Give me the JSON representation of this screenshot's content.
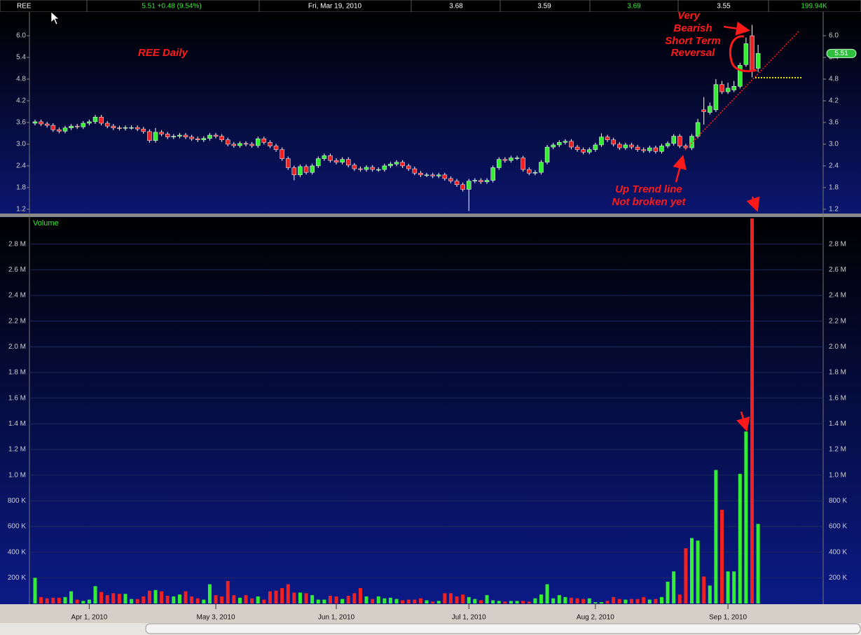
{
  "header": {
    "cells": [
      "REE",
      "5.51 +0.48 (9.54%)",
      "Fri, Mar 19, 2010",
      "3.68",
      "3.59",
      "3.69",
      "3.55",
      "199.94K"
    ]
  },
  "annotations": [
    "Very",
    "Bearish",
    "Short Term",
    "Reversal",
    "Up Trend line",
    "Not broken yet"
  ],
  "chart_data": [
    {
      "type": "candlestick",
      "title": "REE Daily",
      "up_color": "#33ee33",
      "down_color": "#ee2222",
      "wick_color": "#ffffff",
      "xlim": [
        -0.93,
        130.8
      ],
      "ylim": [
        1.12,
        6.64
      ],
      "yticks": [
        1.2,
        1.8,
        2.4,
        {
          "value": 3.0,
          "label": "3.0"
        },
        3.6,
        4.2,
        4.8,
        5.4,
        {
          "value": 6.0,
          "label": "6.0"
        }
      ],
      "open": [
        3.58,
        3.62,
        3.56,
        3.52,
        3.4,
        3.36,
        3.45,
        3.5,
        3.48,
        3.58,
        3.62,
        3.75,
        3.58,
        3.5,
        3.45,
        3.44,
        3.46,
        3.46,
        3.42,
        3.35,
        3.1,
        3.33,
        3.28,
        3.2,
        3.22,
        3.25,
        3.2,
        3.15,
        3.12,
        3.16,
        3.25,
        3.22,
        3.12,
        3.0,
        2.96,
        3.02,
        3.0,
        2.96,
        3.15,
        3.05,
        2.95,
        2.85,
        2.6,
        2.35,
        2.15,
        2.38,
        2.22,
        2.4,
        2.6,
        2.68,
        2.55,
        2.5,
        2.58,
        2.42,
        2.32,
        2.3,
        2.36,
        2.3,
        2.3,
        2.4,
        2.45,
        2.5,
        2.4,
        2.32,
        2.2,
        2.15,
        2.15,
        2.12,
        2.15,
        2.05,
        1.98,
        1.88,
        1.75,
        1.98,
        2.0,
        1.96,
        2.0,
        2.35,
        2.58,
        2.55,
        2.62,
        2.62,
        2.3,
        2.2,
        2.22,
        2.5,
        2.92,
        2.98,
        3.05,
        3.08,
        2.92,
        2.85,
        2.78,
        2.85,
        2.98,
        3.2,
        3.12,
        3.0,
        2.9,
        2.98,
        2.92,
        2.85,
        2.82,
        2.9,
        2.8,
        2.95,
        3.02,
        3.22,
        2.95,
        2.9,
        3.22,
        3.95,
        3.88,
        3.95,
        4.65,
        4.45,
        4.5,
        4.6,
        5.2,
        6.0,
        5.1
      ],
      "high": [
        3.68,
        3.68,
        3.62,
        3.58,
        3.46,
        3.51,
        3.56,
        3.56,
        3.64,
        3.68,
        3.81,
        3.81,
        3.64,
        3.56,
        3.51,
        3.52,
        3.52,
        3.52,
        3.48,
        3.41,
        3.45,
        3.39,
        3.34,
        3.28,
        3.31,
        3.31,
        3.26,
        3.21,
        3.22,
        3.31,
        3.31,
        3.28,
        3.18,
        3.06,
        3.08,
        3.08,
        3.06,
        3.21,
        3.21,
        3.11,
        3.01,
        2.91,
        2.66,
        2.41,
        2.44,
        2.44,
        2.46,
        2.66,
        2.74,
        2.74,
        2.61,
        2.64,
        2.64,
        2.48,
        2.38,
        2.42,
        2.42,
        2.36,
        2.46,
        2.51,
        2.56,
        2.56,
        2.46,
        2.38,
        2.26,
        2.21,
        2.21,
        2.21,
        2.21,
        2.11,
        2.04,
        1.94,
        2.04,
        2.06,
        2.06,
        2.06,
        2.41,
        2.64,
        2.64,
        2.68,
        2.68,
        2.68,
        2.36,
        2.28,
        2.56,
        2.98,
        3.04,
        3.11,
        3.14,
        3.14,
        2.98,
        2.91,
        2.91,
        3.04,
        3.3,
        3.26,
        3.18,
        3.06,
        3.04,
        3.04,
        2.98,
        2.91,
        2.96,
        2.96,
        3.01,
        3.08,
        3.28,
        3.28,
        3.01,
        3.28,
        3.7,
        4.3,
        4.15,
        4.8,
        4.75,
        4.7,
        4.75,
        5.25,
        5.95,
        6.3,
        5.75
      ],
      "low": [
        3.52,
        3.5,
        3.46,
        3.34,
        3.3,
        3.3,
        3.39,
        3.42,
        3.42,
        3.52,
        3.56,
        3.52,
        3.44,
        3.39,
        3.38,
        3.38,
        3.4,
        3.36,
        3.29,
        3.04,
        3.04,
        3.22,
        3.14,
        3.14,
        3.16,
        3.14,
        3.09,
        3.06,
        3.06,
        3.1,
        3.16,
        3.06,
        2.94,
        2.9,
        2.9,
        2.94,
        2.9,
        2.9,
        2.99,
        2.89,
        2.79,
        2.54,
        2.29,
        2.0,
        2.09,
        2.16,
        2.16,
        2.34,
        2.54,
        2.49,
        2.44,
        2.44,
        2.36,
        2.26,
        2.24,
        2.24,
        2.24,
        2.24,
        2.24,
        2.34,
        2.39,
        2.34,
        2.26,
        2.14,
        2.09,
        2.09,
        2.06,
        2.06,
        1.99,
        1.92,
        1.82,
        1.69,
        1.15,
        1.92,
        1.9,
        1.9,
        1.94,
        2.29,
        2.49,
        2.49,
        2.56,
        2.24,
        2.14,
        2.14,
        2.16,
        2.44,
        2.86,
        2.92,
        2.99,
        2.86,
        2.79,
        2.72,
        2.72,
        2.79,
        2.92,
        3.06,
        2.94,
        2.84,
        2.84,
        2.86,
        2.79,
        2.76,
        2.76,
        2.74,
        2.74,
        2.89,
        2.96,
        2.89,
        2.84,
        2.84,
        3.16,
        3.54,
        3.82,
        3.89,
        4.39,
        4.39,
        4.44,
        4.54,
        5.14,
        4.85,
        5.0
      ],
      "close": [
        3.62,
        3.56,
        3.52,
        3.4,
        3.36,
        3.45,
        3.5,
        3.48,
        3.58,
        3.62,
        3.75,
        3.58,
        3.5,
        3.45,
        3.44,
        3.46,
        3.46,
        3.42,
        3.35,
        3.1,
        3.33,
        3.28,
        3.2,
        3.22,
        3.25,
        3.2,
        3.15,
        3.12,
        3.16,
        3.25,
        3.22,
        3.12,
        3.0,
        2.96,
        3.02,
        3.0,
        2.96,
        3.15,
        3.05,
        2.95,
        2.85,
        2.6,
        2.35,
        2.15,
        2.38,
        2.22,
        2.4,
        2.6,
        2.68,
        2.55,
        2.5,
        2.58,
        2.42,
        2.32,
        2.3,
        2.36,
        2.3,
        2.3,
        2.4,
        2.45,
        2.5,
        2.4,
        2.32,
        2.2,
        2.15,
        2.15,
        2.12,
        2.15,
        2.05,
        1.98,
        1.88,
        1.75,
        1.98,
        2.0,
        1.96,
        2.0,
        2.35,
        2.58,
        2.55,
        2.62,
        2.62,
        2.3,
        2.2,
        2.22,
        2.5,
        2.92,
        2.98,
        3.05,
        3.08,
        2.92,
        2.85,
        2.78,
        2.85,
        2.98,
        3.2,
        3.12,
        3.0,
        2.9,
        2.98,
        2.92,
        2.85,
        2.82,
        2.9,
        2.8,
        2.95,
        3.02,
        3.22,
        2.95,
        2.9,
        3.22,
        3.6,
        3.9,
        4.05,
        4.65,
        4.45,
        4.55,
        4.6,
        5.18,
        5.78,
        5.03,
        5.51
      ]
    },
    {
      "type": "bar",
      "title": "Volume",
      "grid": true,
      "xlim": [
        -0.93,
        130.8
      ],
      "ylim": [
        0,
        3000000
      ],
      "xticks": [
        {
          "value": 9,
          "label": "Apr 1, 2010"
        },
        {
          "value": 30,
          "label": "May 3, 2010"
        },
        {
          "value": 50,
          "label": "Jun 1, 2010"
        },
        {
          "value": 72,
          "label": "Jul 1, 2010"
        },
        {
          "value": 93,
          "label": "Aug 2, 2010"
        },
        {
          "value": 115,
          "label": "Sep 1, 2010"
        }
      ],
      "yticks": [
        {
          "value": 200000,
          "label": "200 K"
        },
        {
          "value": 400000,
          "label": "400 K"
        },
        {
          "value": 600000,
          "label": "600 K"
        },
        {
          "value": 800000,
          "label": "800 K"
        },
        {
          "value": 1000000,
          "label": "1.0 M"
        },
        {
          "value": 1200000,
          "label": "1.2 M"
        },
        {
          "value": 1400000,
          "label": "1.4 M"
        },
        {
          "value": 1600000,
          "label": "1.6 M"
        },
        {
          "value": 1800000,
          "label": "1.8 M"
        },
        {
          "value": 2000000,
          "label": "2.0 M"
        },
        {
          "value": 2200000,
          "label": "2.2 M"
        },
        {
          "value": 2400000,
          "label": "2.4 M"
        },
        {
          "value": 2600000,
          "label": "2.6 M"
        },
        {
          "value": 2800000,
          "label": "2.8 M"
        }
      ],
      "values": [
        200000,
        50000,
        40000,
        45000,
        45000,
        50000,
        95000,
        30000,
        20000,
        30000,
        135000,
        90000,
        65000,
        80000,
        75000,
        75000,
        35000,
        35000,
        55000,
        100000,
        105000,
        95000,
        60000,
        55000,
        70000,
        95000,
        55000,
        40000,
        30000,
        150000,
        65000,
        55000,
        175000,
        65000,
        45000,
        65000,
        40000,
        55000,
        30000,
        95000,
        100000,
        120000,
        150000,
        85000,
        85000,
        80000,
        65000,
        30000,
        30000,
        60000,
        55000,
        35000,
        60000,
        80000,
        120000,
        55000,
        35000,
        55000,
        40000,
        45000,
        35000,
        25000,
        30000,
        30000,
        40000,
        25000,
        15000,
        20000,
        80000,
        80000,
        55000,
        70000,
        50000,
        35000,
        25000,
        65000,
        25000,
        20000,
        15000,
        20000,
        20000,
        20000,
        15000,
        40000,
        70000,
        150000,
        40000,
        65000,
        50000,
        45000,
        40000,
        35000,
        40000,
        10000,
        10000,
        20000,
        50000,
        35000,
        30000,
        35000,
        35000,
        50000,
        30000,
        35000,
        50000,
        170000,
        250000,
        70000,
        430000,
        510000,
        490000,
        210000,
        140000,
        1040000,
        730000,
        250000,
        250000,
        1010000,
        1340000,
        3000000,
        620000
      ]
    }
  ]
}
